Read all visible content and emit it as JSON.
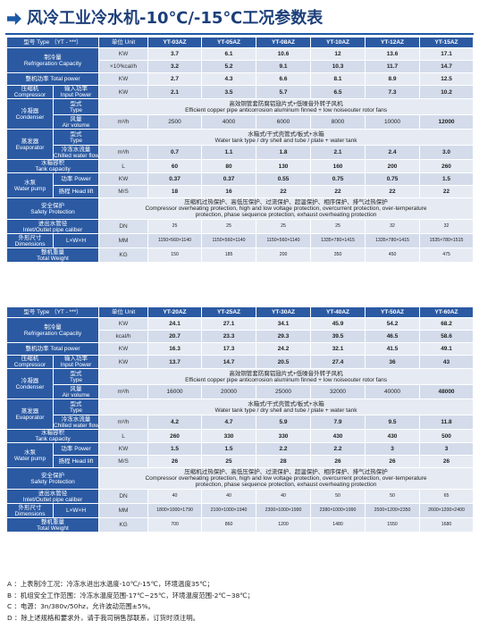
{
  "title": "风冷工业冷水机-10℃/-15℃工况参数表",
  "table1": {
    "header": {
      "model_label": "型号 Type （YT - ***）",
      "unit_label": "单位 Unit",
      "models": [
        "YT-03AZ",
        "YT-05AZ",
        "YT-08AZ",
        "YT-10AZ",
        "YT-12AZ",
        "YT-15AZ"
      ]
    },
    "labels": {
      "cooling": "制冷量\nRefrigeration Capacity",
      "power": "整机功率 Total power",
      "compressor": "压缩机\nCompressor",
      "input_power": "输入功率\nInput Power",
      "condenser": "冷凝器\nCondenser",
      "type": "型式\nType",
      "air": "风量\nAir volume",
      "evaporator": "蒸发器\nEvaporator",
      "chilled": "冷冻水流量\nChilled water flow",
      "tank": "水箱容积\nTank capacity",
      "pump": "水泵\nWater pump",
      "pump_power": "功率 Power",
      "head": "扬程 Head lift",
      "safety": "安全保护\nSafety Protection",
      "pipe": "进出水管径\nInlet/Outlet pipe caliber",
      "dimensions": "外形尺寸\nDimensions",
      "lwh": "L×W×H",
      "weight": "整机重量\nTotal Weight"
    },
    "units": {
      "kw": "KW",
      "kcal": "×10³kcal/h",
      "m3h": "m³/h",
      "l": "L",
      "ms": "M/S",
      "dn": "DN",
      "mm": "MM",
      "kg": "KG"
    },
    "rows": {
      "cooling_kw": [
        "3.7",
        "6.1",
        "10.6",
        "12",
        "13.6",
        "17.1"
      ],
      "cooling_kcal": [
        "3.2",
        "5.2",
        "9.1",
        "10.3",
        "11.7",
        "14.7"
      ],
      "total_power": [
        "2.7",
        "4.3",
        "6.6",
        "8.1",
        "8.9",
        "12.5"
      ],
      "input_power": [
        "2.1",
        "3.5",
        "5.7",
        "6.5",
        "7.3",
        "10.2"
      ],
      "condenser_type": "高效铜管套防腐铝翅片式+低噪音外转子风机\nEfficient copper pipe anticorrosion aluminum finned + low noiseouter rotor fans",
      "air_volume": [
        "2500",
        "4000",
        "6000",
        "8000",
        "10000",
        "12000"
      ],
      "evaporator_type": "水箱式/干式壳管式/板式+水箱\nWater tank type / dry shell and tube / plate + water tank",
      "chilled_flow": [
        "0.7",
        "1.1",
        "1.8",
        "2.1",
        "2.4",
        "3.0"
      ],
      "tank": [
        "60",
        "80",
        "130",
        "160",
        "200",
        "260"
      ],
      "pump_power": [
        "0.37",
        "0.37",
        "0.55",
        "0.75",
        "0.75",
        "1.5"
      ],
      "head": [
        "18",
        "16",
        "22",
        "22",
        "22",
        "22"
      ],
      "safety": "压缩机过热保护、高低压保护、过流保护、超温保护、相序保护、排气过热保护\nCompressor overheating protection, high and low voltage protection, overcurrent protection, over-temperature\nprotection, phase sequence protection, exhaust overheating protection",
      "pipe": [
        "25",
        "25",
        "25",
        "25",
        "32",
        "32"
      ],
      "dimensions": [
        "1150×560×1140",
        "1150×560×1140",
        "1150×560×1140",
        "1335×780×1415",
        "1335×780×1415",
        "1535×780×1515"
      ],
      "weight": [
        "150",
        "185",
        "200",
        "350",
        "450",
        "475"
      ]
    }
  },
  "table2": {
    "header": {
      "model_label": "型号 Type （YT - ***）",
      "unit_label": "单位 Unit",
      "models": [
        "YT-20AZ",
        "YT-25AZ",
        "YT-30AZ",
        "YT-40AZ",
        "YT-50AZ",
        "YT-60AZ"
      ]
    },
    "units": {
      "kw": "KW",
      "kcal": "kcal/h",
      "m3h": "m³/h",
      "l": "L",
      "ms": "M/S",
      "dn": "DN",
      "mm": "MM",
      "kg": "KG"
    },
    "rows": {
      "cooling_kw": [
        "24.1",
        "27.1",
        "34.1",
        "45.9",
        "54.2",
        "68.2"
      ],
      "cooling_kcal": [
        "20.7",
        "23.3",
        "29.3",
        "39.5",
        "46.5",
        "58.6"
      ],
      "total_power": [
        "16.3",
        "17.3",
        "24.2",
        "32.1",
        "41.5",
        "49.1"
      ],
      "input_power": [
        "13.7",
        "14.7",
        "20.5",
        "27.4",
        "36",
        "43"
      ],
      "condenser_type": "高效铜管套防腐铝翅片式+低噪音外转子风机\nEfficient copper pipe anticorrosion aluminum finned + low noiseouter rotor fans",
      "air_volume": [
        "16000",
        "20000",
        "25000",
        "32000",
        "40000",
        "48000"
      ],
      "evaporator_type": "水箱式/干式壳管式/板式+水箱\nWater tank type / dry shell and tube / plate + water tank",
      "chilled_flow": [
        "4.2",
        "4.7",
        "5.9",
        "7.9",
        "9.5",
        "11.8"
      ],
      "tank": [
        "260",
        "330",
        "330",
        "430",
        "430",
        "500"
      ],
      "pump_power": [
        "1.5",
        "1.5",
        "2.2",
        "2.2",
        "3",
        "3"
      ],
      "head": [
        "26",
        "25",
        "28",
        "26",
        "26",
        "26"
      ],
      "safety": "压缩机过热保护、高低压保护、过流保护、超温保护、相序保护、排气过热保护\nCompressor overheating protection, high and low voltage protection, overcurrent protection, over-temperature\nprotection, phase sequence protection, exhaust overheating protection",
      "pipe": [
        "40",
        "40",
        "40",
        "50",
        "50",
        "65"
      ],
      "dimensions": [
        "1800×1000×1790",
        "2100×1000×1940",
        "2300×1000×1990",
        "2380×1000×1990",
        "2500×1200×2350",
        "2600×1200×2400"
      ],
      "weight": [
        "700",
        "860",
        "1200",
        "1480",
        "1550",
        "1680"
      ]
    }
  },
  "notes": [
    "A ：上表制冷工况：冷冻水进出水温度-10℃/-15℃，环境温度35℃；",
    "B ：机组安全工作范围：冷冻水温度范围-17℃~25℃，环境温度范围-2℃~38℃；",
    "C ：电源：3n/380v/50hz，允许波动范围±5%。",
    "D ：除上述规格和要求外，请于我司销售部联系，订货时须注明。"
  ]
}
